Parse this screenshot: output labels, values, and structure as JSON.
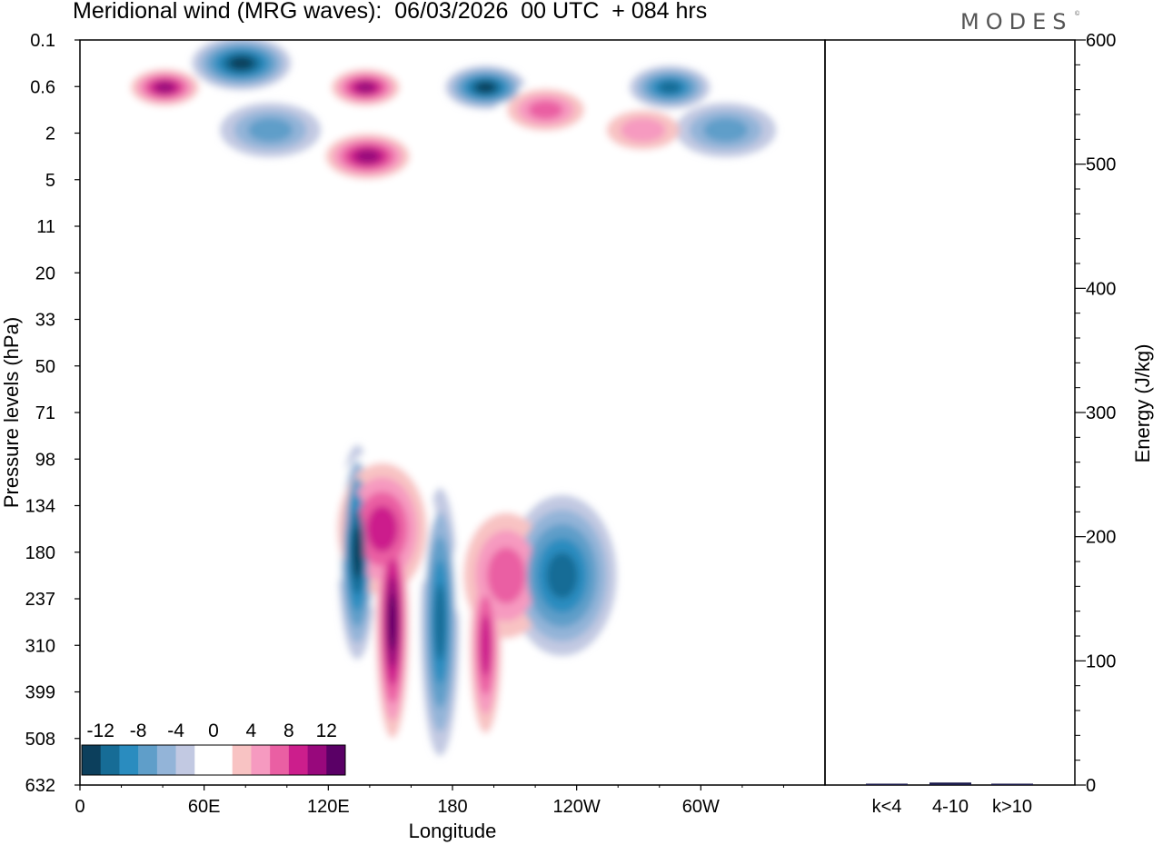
{
  "title": "Meridional wind (MRG waves):  06/03/2026  00 UTC  + 084 hrs",
  "brand": "MODES",
  "brand_mark": "©",
  "chart_data": [
    {
      "type": "heatmap",
      "name": "contour-panel",
      "title": "Meridional wind (MRG waves)",
      "xlabel": "Longitude",
      "ylabel": "Pressure levels (hPa)",
      "x_ticks": [
        "0",
        "60E",
        "120E",
        "180",
        "120W",
        "60W"
      ],
      "x_tick_degrees": [
        0,
        60,
        120,
        180,
        240,
        300
      ],
      "x_range_degrees": [
        0,
        360
      ],
      "y_ticks": [
        "0.1",
        "0.6",
        "2",
        "5",
        "11",
        "20",
        "33",
        "50",
        "71",
        "98",
        "134",
        "180",
        "237",
        "310",
        "399",
        "508",
        "632"
      ],
      "colorbar": {
        "labels": [
          "-12",
          "-8",
          "-4",
          "0",
          "4",
          "8",
          "12"
        ],
        "levels": [
          -14,
          -12,
          -10,
          -8,
          -6,
          -4,
          -2,
          2,
          4,
          6,
          8,
          10,
          12,
          14
        ],
        "colors": [
          "#0c3f5c",
          "#166c96",
          "#2a8cbf",
          "#5f9ec9",
          "#93b4d8",
          "#c2c9e2",
          "#ffffff",
          "#ffffff",
          "#f8c3c3",
          "#f69ac0",
          "#ea5fa3",
          "#cc1e8c",
          "#98087c",
          "#5a0066"
        ],
        "placement": "bottom-left"
      },
      "features": [
        {
          "type": "positive",
          "value": 14,
          "center_lon": 151,
          "range_hpa": [
            134,
            508
          ]
        },
        {
          "type": "negative",
          "value": -13,
          "center_lon": 134,
          "range_hpa": [
            98,
            310
          ]
        },
        {
          "type": "negative",
          "value": -11,
          "center_lon": 174,
          "range_hpa": [
            134,
            508
          ]
        },
        {
          "type": "positive",
          "value": 10,
          "center_lon": 196,
          "range_hpa": [
            180,
            508
          ]
        },
        {
          "type": "positive",
          "value": 9,
          "center_lon": 206,
          "range_hpa": [
            134,
            310
          ]
        },
        {
          "type": "negative",
          "value": -10,
          "center_lon": 233,
          "range_hpa": [
            134,
            310
          ]
        },
        {
          "type": "positive",
          "value": 10,
          "center_lon": 146,
          "range_hpa": [
            98,
            237
          ]
        },
        {
          "type": "positive",
          "value": 12,
          "center_lon": 41,
          "range_hpa": [
            0.3,
            1
          ]
        },
        {
          "type": "negative",
          "value": -12,
          "center_lon": 78,
          "range_hpa": [
            0.1,
            0.6
          ]
        },
        {
          "type": "positive",
          "value": 13,
          "center_lon": 138,
          "range_hpa": [
            0.3,
            1
          ]
        },
        {
          "type": "positive",
          "value": 12,
          "center_lon": 139,
          "range_hpa": [
            2,
            5
          ]
        },
        {
          "type": "negative",
          "value": -13,
          "center_lon": 196,
          "range_hpa": [
            0.3,
            1
          ]
        },
        {
          "type": "positive",
          "value": 8,
          "center_lon": 225,
          "range_hpa": [
            0.6,
            2
          ]
        },
        {
          "type": "positive",
          "value": 7,
          "center_lon": 272,
          "range_hpa": [
            1,
            3
          ]
        },
        {
          "type": "negative",
          "value": -10,
          "center_lon": 285,
          "range_hpa": [
            0.3,
            1
          ]
        },
        {
          "type": "negative",
          "value": -6,
          "center_lon": 312,
          "range_hpa": [
            1,
            3
          ]
        },
        {
          "type": "negative",
          "value": -6,
          "center_lon": 92,
          "range_hpa": [
            1,
            3
          ]
        }
      ]
    },
    {
      "type": "bar",
      "name": "energy-panel",
      "categories": [
        "k<4",
        "4-10",
        "k>10"
      ],
      "values": [
        0.5,
        2,
        0.5
      ],
      "ylabel": "Energy (J/kg)",
      "ylim": [
        0,
        600
      ],
      "yticks": [
        0,
        100,
        200,
        300,
        400,
        500,
        600
      ],
      "yticks_text": [
        "0",
        "100",
        "200",
        "300",
        "400",
        "500",
        "600"
      ]
    }
  ]
}
